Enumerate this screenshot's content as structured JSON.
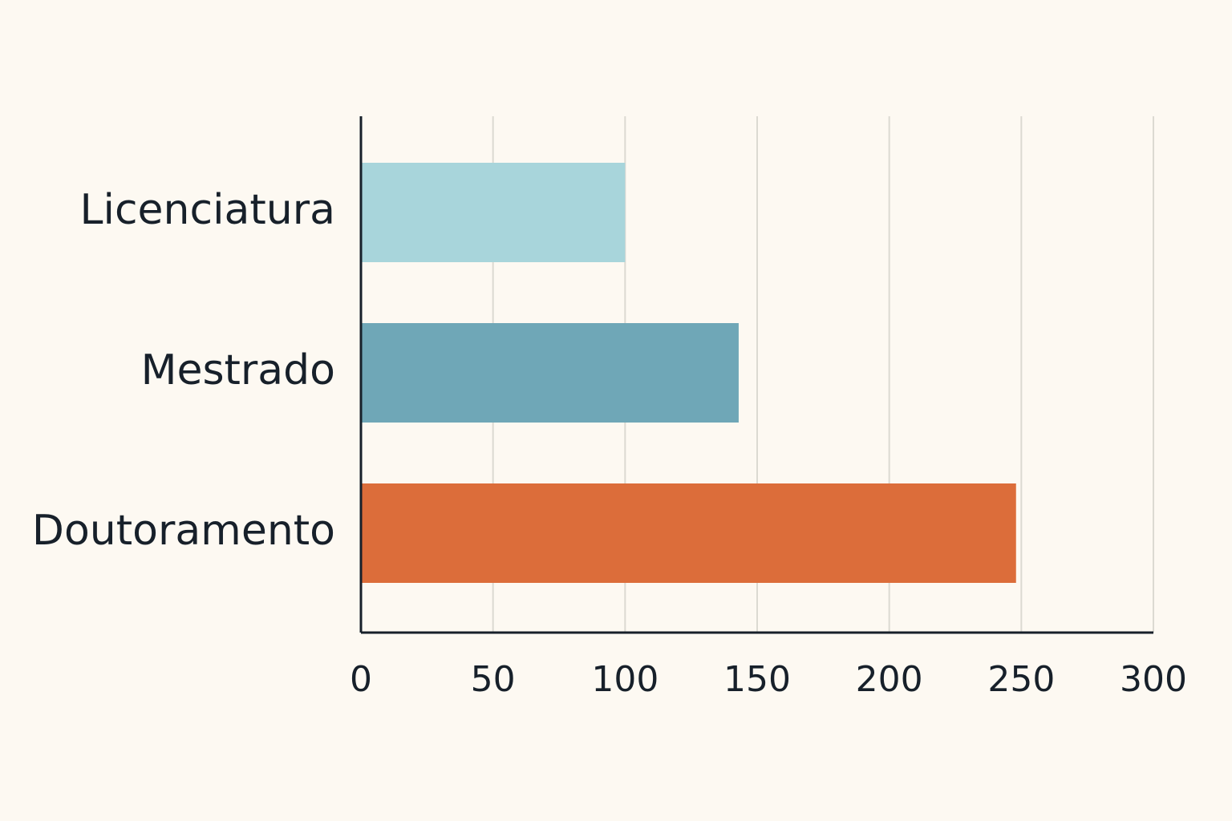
{
  "chart_data": {
    "type": "barh",
    "categories": [
      "Licenciatura",
      "Mestrado",
      "Doutoramento"
    ],
    "values": [
      100,
      143,
      248
    ],
    "colors": [
      "#a8d5db",
      "#6fa7b7",
      "#dc6d3a"
    ],
    "xlim": [
      0,
      300
    ],
    "xticks": [
      0,
      50,
      100,
      150,
      200,
      250,
      300
    ],
    "grid": true
  }
}
